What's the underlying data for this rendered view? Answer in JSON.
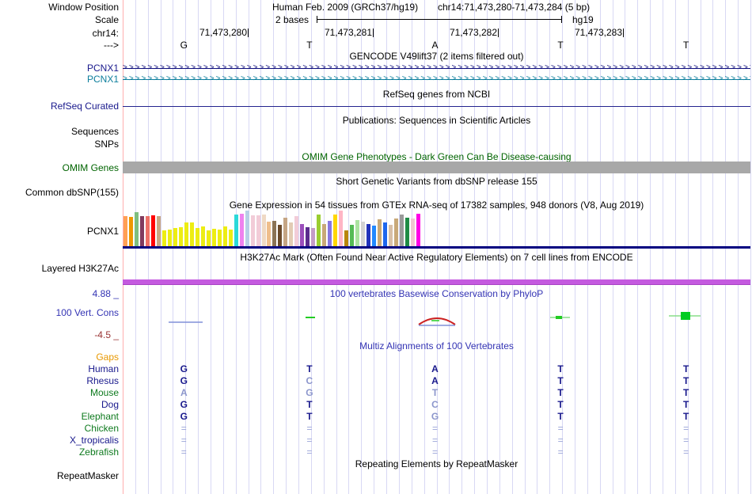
{
  "header": {
    "assembly": "Human Feb. 2009 (GRCh37/hg19)",
    "position": "chr14:71,473,280-71,473,284 (5 bp)",
    "scale_value": "2 bases",
    "assembly_short": "hg19",
    "row_labels": {
      "window_position": "Window Position",
      "scale": "Scale",
      "chrom": "chr14:",
      "strand": "--->"
    },
    "coordinates": [
      "71,473,280",
      "71,473,281",
      "71,473,282",
      "71,473,283"
    ],
    "bases": [
      "G",
      "T",
      "A",
      "T",
      "T"
    ]
  },
  "gencode": {
    "title": "GENCODE V49lift37 (2 items filtered out)",
    "items": [
      {
        "label": "PCNX1",
        "color": "#10107E"
      },
      {
        "label": "PCNX1",
        "color": "#0C7E9C"
      }
    ]
  },
  "refseq": {
    "title": "RefSeq genes from NCBI",
    "label": "RefSeq Curated",
    "line_color": "#23238E"
  },
  "publications": {
    "title": "Publications: Sequences in Scientific Articles",
    "sequences_label": "Sequences",
    "snps_label": "SNPs"
  },
  "omim": {
    "title": "OMIM Gene Phenotypes - Dark Green Can Be Disease-causing",
    "label": "OMIM Genes",
    "bar_color": "#A8A8A8"
  },
  "dbsnp": {
    "title": "Short Genetic Variants from dbSNP release 155",
    "label": "Common dbSNP(155)"
  },
  "gtex": {
    "title": "Gene Expression in 54 tissues from GTEx RNA-seq of 17382 samples, 948 donors (V8, Aug 2019)",
    "label": "PCNX1",
    "baseline_color": "#000080",
    "bars": [
      {
        "c": "#FFA054",
        "h": 0.85
      },
      {
        "c": "#EE9800",
        "h": 0.82
      },
      {
        "c": "#7FBF7F",
        "h": 0.95
      },
      {
        "c": "#823B5E",
        "h": 0.85
      },
      {
        "c": "#EE7066",
        "h": 0.85
      },
      {
        "c": "#FF0000",
        "h": 0.87
      },
      {
        "c": "#C9A784",
        "h": 0.85
      },
      {
        "c": "#EDED13",
        "h": 0.45
      },
      {
        "c": "#EDED13",
        "h": 0.46
      },
      {
        "c": "#EDED13",
        "h": 0.52
      },
      {
        "c": "#EDED13",
        "h": 0.54
      },
      {
        "c": "#EDED13",
        "h": 0.66
      },
      {
        "c": "#EDED13",
        "h": 0.66
      },
      {
        "c": "#EDED13",
        "h": 0.5
      },
      {
        "c": "#EDED13",
        "h": 0.55
      },
      {
        "c": "#EDED13",
        "h": 0.44
      },
      {
        "c": "#EDED13",
        "h": 0.48
      },
      {
        "c": "#EDED13",
        "h": 0.46
      },
      {
        "c": "#EDED13",
        "h": 0.56
      },
      {
        "c": "#EDED13",
        "h": 0.47
      },
      {
        "c": "#2BD9D9",
        "h": 0.88
      },
      {
        "c": "#EE82EE",
        "h": 0.92
      },
      {
        "c": "#B7CFE6",
        "h": 1.0
      },
      {
        "c": "#F2CCD8",
        "h": 0.86
      },
      {
        "c": "#F2CCD8",
        "h": 0.86
      },
      {
        "c": "#EFD9C4",
        "h": 0.88
      },
      {
        "c": "#EFBE8C",
        "h": 0.7
      },
      {
        "c": "#8B7355",
        "h": 0.72
      },
      {
        "c": "#6B4A2A",
        "h": 0.6
      },
      {
        "c": "#C5A584",
        "h": 0.8
      },
      {
        "c": "#E2CBB4",
        "h": 0.66
      },
      {
        "c": "#F2CCD8",
        "h": 0.84
      },
      {
        "c": "#9B4FBB",
        "h": 0.62
      },
      {
        "c": "#5B2D8E",
        "h": 0.54
      },
      {
        "c": "#C49CC8",
        "h": 0.5
      },
      {
        "c": "#9ACD32",
        "h": 0.88
      },
      {
        "c": "#C8A878",
        "h": 0.62
      },
      {
        "c": "#8877E0",
        "h": 0.72
      },
      {
        "c": "#FFD700",
        "h": 0.88
      },
      {
        "c": "#FFB5C5",
        "h": 1.0
      },
      {
        "c": "#B8860B",
        "h": 0.44
      },
      {
        "c": "#55BB55",
        "h": 0.6
      },
      {
        "c": "#ABE3A0",
        "h": 0.74
      },
      {
        "c": "#D3D3D3",
        "h": 0.7
      },
      {
        "c": "#2233BB",
        "h": 0.62
      },
      {
        "c": "#2288FF",
        "h": 0.58
      },
      {
        "c": "#C8A878",
        "h": 0.76
      },
      {
        "c": "#1E66EE",
        "h": 0.66
      },
      {
        "c": "#D8C0A8",
        "h": 0.6
      },
      {
        "c": "#C8A878",
        "h": 0.78
      },
      {
        "c": "#9A9A9A",
        "h": 0.88
      },
      {
        "c": "#1F8B45",
        "h": 0.8
      },
      {
        "c": "#F0C8D0",
        "h": 0.78
      },
      {
        "c": "#FF00E6",
        "h": 0.92
      }
    ]
  },
  "h3k27ac": {
    "title": "H3K27Ac Mark (Often Found Near Active Regulatory Elements) on 7 cell lines from ENCODE",
    "label": "Layered H3K27Ac",
    "bar_color": "#C45ADF"
  },
  "phylop": {
    "title": "100 vertebrates Basewise Conservation by PhyloP",
    "label": "100 Vert. Cons",
    "max_label": "4.88 _",
    "min_label": "-4.5 _"
  },
  "multiz": {
    "title": "Multiz Alignments of 100 Vertebrates",
    "gaps_label": "Gaps",
    "species": [
      {
        "name": "Human",
        "color": "navy",
        "cells": [
          {
            "t": "G",
            "dim": false
          },
          {
            "t": "T",
            "dim": false
          },
          {
            "t": "A",
            "dim": false
          },
          {
            "t": "T",
            "dim": false
          },
          {
            "t": "T",
            "dim": false
          }
        ]
      },
      {
        "name": "Rhesus",
        "color": "navy",
        "cells": [
          {
            "t": "G",
            "dim": false
          },
          {
            "t": "C",
            "dim": true
          },
          {
            "t": "A",
            "dim": false
          },
          {
            "t": "T",
            "dim": false
          },
          {
            "t": "T",
            "dim": false
          }
        ]
      },
      {
        "name": "Mouse",
        "color": "green",
        "cells": [
          {
            "t": "A",
            "dim": true
          },
          {
            "t": "G",
            "dim": true
          },
          {
            "t": "T",
            "dim": true
          },
          {
            "t": "T",
            "dim": false
          },
          {
            "t": "T",
            "dim": false
          }
        ]
      },
      {
        "name": "Dog",
        "color": "navy",
        "cells": [
          {
            "t": "G",
            "dim": false
          },
          {
            "t": "T",
            "dim": false
          },
          {
            "t": "C",
            "dim": true
          },
          {
            "t": "T",
            "dim": false
          },
          {
            "t": "T",
            "dim": false
          }
        ]
      },
      {
        "name": "Elephant",
        "color": "green",
        "cells": [
          {
            "t": "G",
            "dim": false
          },
          {
            "t": "T",
            "dim": false
          },
          {
            "t": "G",
            "dim": true
          },
          {
            "t": "T",
            "dim": false
          },
          {
            "t": "T",
            "dim": false
          }
        ]
      },
      {
        "name": "Chicken",
        "color": "green",
        "cells": [
          {
            "t": "=",
            "dim": true
          },
          {
            "t": "=",
            "dim": true
          },
          {
            "t": "=",
            "dim": true
          },
          {
            "t": "=",
            "dim": true
          },
          {
            "t": "=",
            "dim": true
          }
        ]
      },
      {
        "name": "X_tropicalis",
        "color": "navy",
        "cells": [
          {
            "t": "=",
            "dim": true
          },
          {
            "t": "=",
            "dim": true
          },
          {
            "t": "=",
            "dim": true
          },
          {
            "t": "=",
            "dim": true
          },
          {
            "t": "=",
            "dim": true
          }
        ]
      },
      {
        "name": "Zebrafish",
        "color": "green",
        "cells": [
          {
            "t": "=",
            "dim": true
          },
          {
            "t": "=",
            "dim": true
          },
          {
            "t": "=",
            "dim": true
          },
          {
            "t": "=",
            "dim": true
          },
          {
            "t": "=",
            "dim": true
          }
        ]
      }
    ]
  },
  "repeatmasker": {
    "title": "Repeating Elements by RepeatMasker",
    "label": "RepeatMasker"
  }
}
